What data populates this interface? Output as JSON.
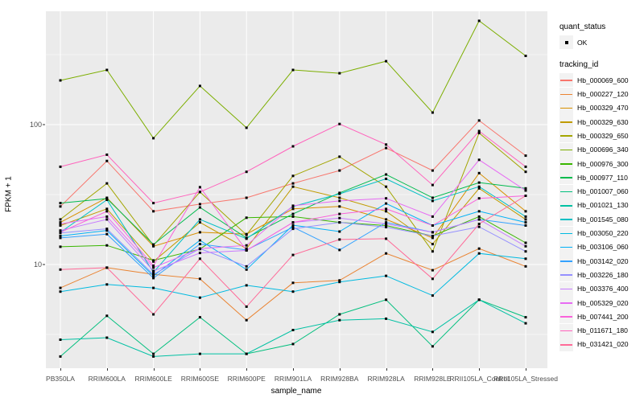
{
  "chart_data": {
    "type": "line",
    "xlabel": "sample_name",
    "ylabel": "FPKM + 1",
    "y_scale": "log10",
    "ylim": [
      1.8,
      646
    ],
    "y_ticks": [
      {
        "value": 100,
        "label": "100"
      },
      {
        "value": 10,
        "label": "10"
      }
    ],
    "y_minor_ticks": [
      3.162,
      31.62,
      316.2
    ],
    "grid": "on",
    "panel_bg": "#EBEBEB",
    "grid_color": "#FFFFFF",
    "marker": "black-square",
    "marker_color": "#000000",
    "legend_position": "right",
    "categories": [
      "PB350LA",
      "RRIM600LA",
      "RRIM600LE",
      "RRIM600SE",
      "RRIM600PE",
      "RRIM901LA",
      "RRIM928BA",
      "RRIM928LA",
      "RRIM928LE",
      "RRII105LA_Control",
      "RRII105LA_Stressed"
    ],
    "legend_quant": {
      "title": "quant_status",
      "entries": [
        {
          "label": "OK"
        }
      ]
    },
    "legend_tracking": {
      "title": "tracking_id"
    },
    "series": [
      {
        "name": "Hb_000069_600",
        "color": "#F8766D",
        "values": [
          26,
          55,
          24,
          27,
          30,
          38,
          47,
          68,
          47,
          107,
          60
        ]
      },
      {
        "name": "Hb_000227_120",
        "color": "#EA8331",
        "values": [
          6.8,
          9.5,
          8.5,
          7.9,
          4.0,
          7.4,
          7.7,
          12,
          9.1,
          13,
          9.7
        ]
      },
      {
        "name": "Hb_000329_470",
        "color": "#D89000",
        "values": [
          20,
          30,
          13.5,
          17,
          16.5,
          25,
          26,
          21,
          15.5,
          45,
          24
        ]
      },
      {
        "name": "Hb_000329_630",
        "color": "#C09B00",
        "values": [
          19,
          25,
          10.5,
          20,
          13,
          36,
          30,
          24,
          14,
          35,
          21
        ]
      },
      {
        "name": "Hb_000329_650",
        "color": "#A3A500",
        "values": [
          21,
          38,
          13.7,
          33,
          16.3,
          43,
          59,
          36,
          12.4,
          87,
          46
        ]
      },
      {
        "name": "Hb_000696_340",
        "color": "#7CAE00",
        "values": [
          207,
          246,
          80,
          189,
          95,
          246,
          233,
          284,
          122,
          552,
          310
        ]
      },
      {
        "name": "Hb_000976_300",
        "color": "#39B600",
        "values": [
          13.4,
          13.7,
          10.7,
          12.9,
          21.6,
          22,
          20,
          19,
          16,
          22,
          14.3
        ]
      },
      {
        "name": "Hb_000977_110",
        "color": "#00BB4E",
        "values": [
          27.5,
          29.6,
          13.9,
          25.6,
          15.5,
          23,
          32.5,
          44,
          30,
          38.5,
          35
        ]
      },
      {
        "name": "Hb_001007_060",
        "color": "#00BF7D",
        "values": [
          2.2,
          4.3,
          2.3,
          4.2,
          2.3,
          2.7,
          4.4,
          5.6,
          2.6,
          5.6,
          4.2
        ]
      },
      {
        "name": "Hb_001021_130",
        "color": "#00C1A3",
        "values": [
          2.9,
          3.0,
          2.2,
          2.3,
          2.3,
          3.4,
          4.0,
          4.1,
          3.3,
          5.6,
          3.8
        ]
      },
      {
        "name": "Hb_001545_080",
        "color": "#00BFC4",
        "values": [
          17,
          29,
          8.8,
          21,
          15.3,
          26,
          32,
          41,
          28.5,
          36,
          22
        ]
      },
      {
        "name": "Hb_003050_220",
        "color": "#00BAE0",
        "values": [
          6.4,
          7.2,
          6.8,
          5.8,
          7.1,
          6.4,
          7.5,
          8.3,
          6.0,
          12,
          11
        ]
      },
      {
        "name": "Hb_003106_060",
        "color": "#00B0F6",
        "values": [
          16,
          17.5,
          8.3,
          14.9,
          9.2,
          19.1,
          17.2,
          27.3,
          19,
          24,
          20
        ]
      },
      {
        "name": "Hb_003142_020",
        "color": "#35A2FF",
        "values": [
          15.5,
          16.5,
          8.0,
          14,
          12.7,
          18.5,
          12.7,
          20,
          17,
          21,
          19
        ]
      },
      {
        "name": "Hb_003226_180",
        "color": "#9590FF",
        "values": [
          16.8,
          18,
          8.5,
          13,
          9.7,
          18,
          20,
          18.5,
          16,
          18.6,
          12.4
        ]
      },
      {
        "name": "Hb_003376_400",
        "color": "#C77CFF",
        "values": [
          17.5,
          21,
          9.0,
          12.1,
          12.6,
          20,
          21.5,
          19.5,
          17,
          21,
          13.5
        ]
      },
      {
        "name": "Hb_005329_020",
        "color": "#E76BF3",
        "values": [
          19.5,
          22,
          9.5,
          13,
          13.7,
          26.3,
          28.5,
          29.7,
          22,
          56,
          33.8
        ]
      },
      {
        "name": "Hb_007441_200",
        "color": "#FA62DB",
        "values": [
          17,
          24,
          9.8,
          35.7,
          12.6,
          20,
          23,
          25,
          19,
          29.7,
          31
        ]
      },
      {
        "name": "Hb_011671_180",
        "color": "#FF62BC",
        "values": [
          50,
          61,
          27.5,
          33,
          46,
          70,
          101,
          72,
          37,
          90,
          50
        ]
      },
      {
        "name": "Hb_031421_020",
        "color": "#FF6A98",
        "values": [
          9.2,
          9.5,
          4.4,
          11,
          5.0,
          11.7,
          15.1,
          15.3,
          7.9,
          19.5,
          31
        ]
      }
    ]
  }
}
